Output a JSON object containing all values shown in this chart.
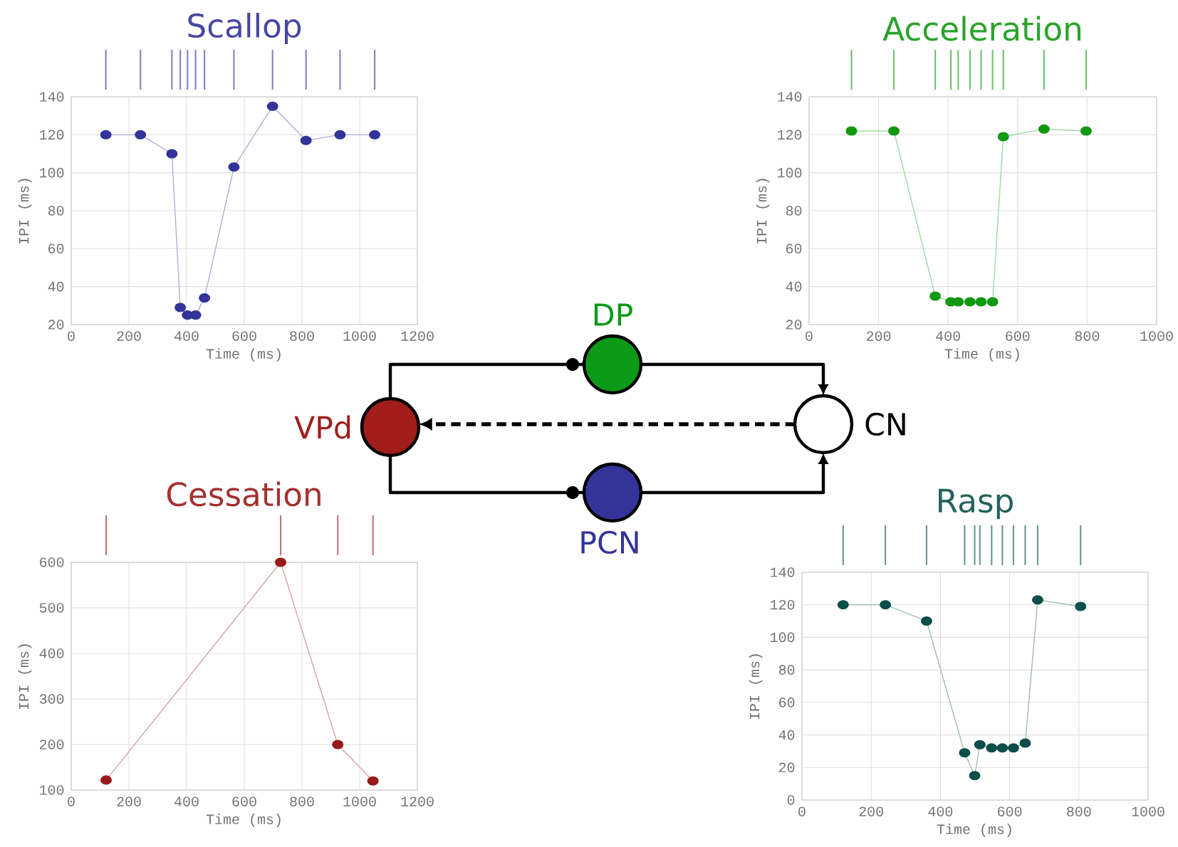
{
  "chart_data": [
    {
      "type": "line",
      "title": "Scallop",
      "xlabel": "Time (ms)",
      "ylabel": "IPI (ms)",
      "grid": true,
      "marker": "circle",
      "x": [
        120,
        240,
        349,
        378,
        403,
        431,
        462,
        564,
        698,
        814,
        932,
        1052
      ],
      "series": [
        {
          "color": "#333399",
          "values": [
            120,
            120,
            110,
            29,
            25,
            25,
            34,
            103,
            135,
            117,
            120,
            120
          ]
        }
      ],
      "xlim": [
        0,
        1200
      ],
      "ylim": [
        20,
        140
      ],
      "xticks": [
        0,
        200,
        400,
        600,
        800,
        1000,
        1200
      ],
      "yticks": [
        20,
        40,
        60,
        80,
        100,
        120,
        140
      ]
    },
    {
      "type": "line",
      "title": "Acceleration",
      "xlabel": "Time (ms)",
      "ylabel": "IPI (ms)",
      "grid": true,
      "marker": "circle",
      "x": [
        122,
        244,
        363,
        408,
        429,
        463,
        495,
        528,
        559,
        676,
        797
      ],
      "series": [
        {
          "color": "#119911",
          "values": [
            122,
            122,
            35,
            32,
            32,
            32,
            32,
            32,
            119,
            123,
            122
          ]
        }
      ],
      "xlim": [
        0,
        1000
      ],
      "ylim": [
        20,
        140
      ],
      "xticks": [
        0,
        200,
        400,
        600,
        800,
        1000
      ],
      "yticks": [
        20,
        40,
        60,
        80,
        100,
        120,
        140
      ]
    },
    {
      "type": "line",
      "title": "Cessation",
      "xlabel": "Time (ms)",
      "ylabel": "IPI (ms)",
      "grid": true,
      "marker": "circle",
      "x": [
        121,
        726,
        924,
        1046
      ],
      "series": [
        {
          "color": "#991a1a",
          "values": [
            122,
            600,
            200,
            120
          ]
        }
      ],
      "xlim": [
        0,
        1200
      ],
      "ylim": [
        100,
        600
      ],
      "xticks": [
        0,
        200,
        400,
        600,
        800,
        1000,
        1200
      ],
      "yticks": [
        100,
        200,
        300,
        400,
        500,
        600
      ]
    },
    {
      "type": "line",
      "title": "Rasp",
      "xlabel": "Time (ms)",
      "ylabel": "IPI (ms)",
      "grid": true,
      "marker": "circle",
      "x": [
        119,
        241,
        360,
        470,
        499,
        514,
        548,
        579,
        611,
        645,
        681,
        805
      ],
      "series": [
        {
          "color": "#0b4f4a",
          "values": [
            120,
            120,
            110,
            29,
            15,
            34,
            32,
            32,
            32,
            35,
            123,
            119
          ]
        }
      ],
      "xlim": [
        0,
        1000
      ],
      "ylim": [
        0,
        140
      ],
      "xticks": [
        0,
        200,
        400,
        600,
        800,
        1000
      ],
      "yticks": [
        0,
        20,
        40,
        60,
        80,
        100,
        120,
        140
      ]
    },
    {
      "type": "other",
      "categories": [
        "DP",
        "VPd",
        "PCN",
        "CN"
      ],
      "colors": [
        "#0c9a18",
        "#a01d1a",
        "#33339a",
        "#ffffff"
      ]
    }
  ]
}
